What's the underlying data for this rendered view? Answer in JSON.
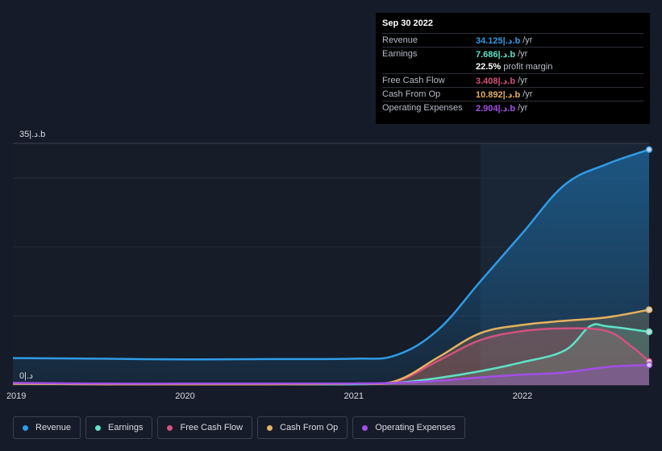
{
  "tooltip": {
    "date": "Sep 30 2022",
    "rows": [
      {
        "label": "Revenue",
        "value": "34.125|.د.b",
        "unit": "/yr",
        "color": "#2f9be6"
      },
      {
        "label": "Earnings",
        "value": "7.686|.د.b",
        "unit": "/yr",
        "color": "#5fe2c7"
      },
      {
        "label": "",
        "value": "22.5%",
        "unit": "profit margin",
        "color": "#ffffff"
      },
      {
        "label": "Free Cash Flow",
        "value": "3.408|.د.b",
        "unit": "/yr",
        "color": "#d3517e"
      },
      {
        "label": "Cash From Op",
        "value": "10.892|.د.b",
        "unit": "/yr",
        "color": "#e6b15e"
      },
      {
        "label": "Operating Expenses",
        "value": "2.904|.د.b",
        "unit": "/yr",
        "color": "#a44ee8"
      }
    ]
  },
  "legend": [
    {
      "label": "Revenue",
      "color": "#2f9be6"
    },
    {
      "label": "Earnings",
      "color": "#5fe2c7"
    },
    {
      "label": "Free Cash Flow",
      "color": "#d3517e"
    },
    {
      "label": "Cash From Op",
      "color": "#e6b15e"
    },
    {
      "label": "Operating Expenses",
      "color": "#a44ee8"
    }
  ],
  "chart_data": {
    "type": "area",
    "y_top_label": "35|.د.b",
    "y_bottom_label": "0|.د",
    "ylim": [
      0,
      35
    ],
    "xlim": [
      2018.98,
      2022.75
    ],
    "highlight_start": 2021.75,
    "x_ticks": [
      {
        "value": 2019,
        "label": "2019"
      },
      {
        "value": 2020,
        "label": "2020"
      },
      {
        "value": 2021,
        "label": "2021"
      },
      {
        "value": 2022,
        "label": "2022"
      }
    ],
    "grid": true,
    "legend_position": "bottom",
    "series": [
      {
        "name": "Revenue",
        "color": "#2f9be6",
        "x": [
          2018.98,
          2019.5,
          2020.0,
          2020.5,
          2021.0,
          2021.25,
          2021.5,
          2021.75,
          2022.0,
          2022.25,
          2022.5,
          2022.75
        ],
        "y": [
          3.9,
          3.8,
          3.7,
          3.75,
          3.8,
          4.3,
          8.0,
          15.0,
          22.0,
          29.0,
          32.0,
          34.1
        ]
      },
      {
        "name": "Earnings",
        "color": "#5fe2c7",
        "x": [
          2018.98,
          2019.5,
          2020.0,
          2020.5,
          2021.0,
          2021.25,
          2021.5,
          2021.75,
          2022.0,
          2022.25,
          2022.4,
          2022.5,
          2022.75
        ],
        "y": [
          0.2,
          0.1,
          0.1,
          0.1,
          0.1,
          0.3,
          1.0,
          2.0,
          3.3,
          5.0,
          8.5,
          8.5,
          7.7
        ]
      },
      {
        "name": "Free Cash Flow",
        "color": "#d3517e",
        "x": [
          2018.98,
          2019.5,
          2020.0,
          2020.5,
          2021.0,
          2021.25,
          2021.5,
          2021.75,
          2022.0,
          2022.25,
          2022.5,
          2022.65,
          2022.75
        ],
        "y": [
          0.2,
          0.1,
          0.1,
          0.1,
          0.2,
          0.5,
          3.5,
          6.5,
          7.8,
          8.2,
          7.8,
          5.5,
          3.4
        ]
      },
      {
        "name": "Cash From Op",
        "color": "#e6b15e",
        "x": [
          2018.98,
          2019.5,
          2020.0,
          2020.5,
          2021.0,
          2021.25,
          2021.5,
          2021.75,
          2022.0,
          2022.25,
          2022.5,
          2022.75
        ],
        "y": [
          0.2,
          0.1,
          0.1,
          0.1,
          0.2,
          0.6,
          4.0,
          7.5,
          8.7,
          9.3,
          9.8,
          10.9
        ]
      },
      {
        "name": "Operating Expenses",
        "color": "#a44ee8",
        "x": [
          2018.98,
          2019.5,
          2020.0,
          2020.5,
          2021.0,
          2021.25,
          2021.5,
          2021.75,
          2022.0,
          2022.25,
          2022.5,
          2022.75
        ],
        "y": [
          0.3,
          0.2,
          0.2,
          0.2,
          0.2,
          0.3,
          0.6,
          1.1,
          1.5,
          1.8,
          2.6,
          2.9
        ]
      }
    ]
  }
}
